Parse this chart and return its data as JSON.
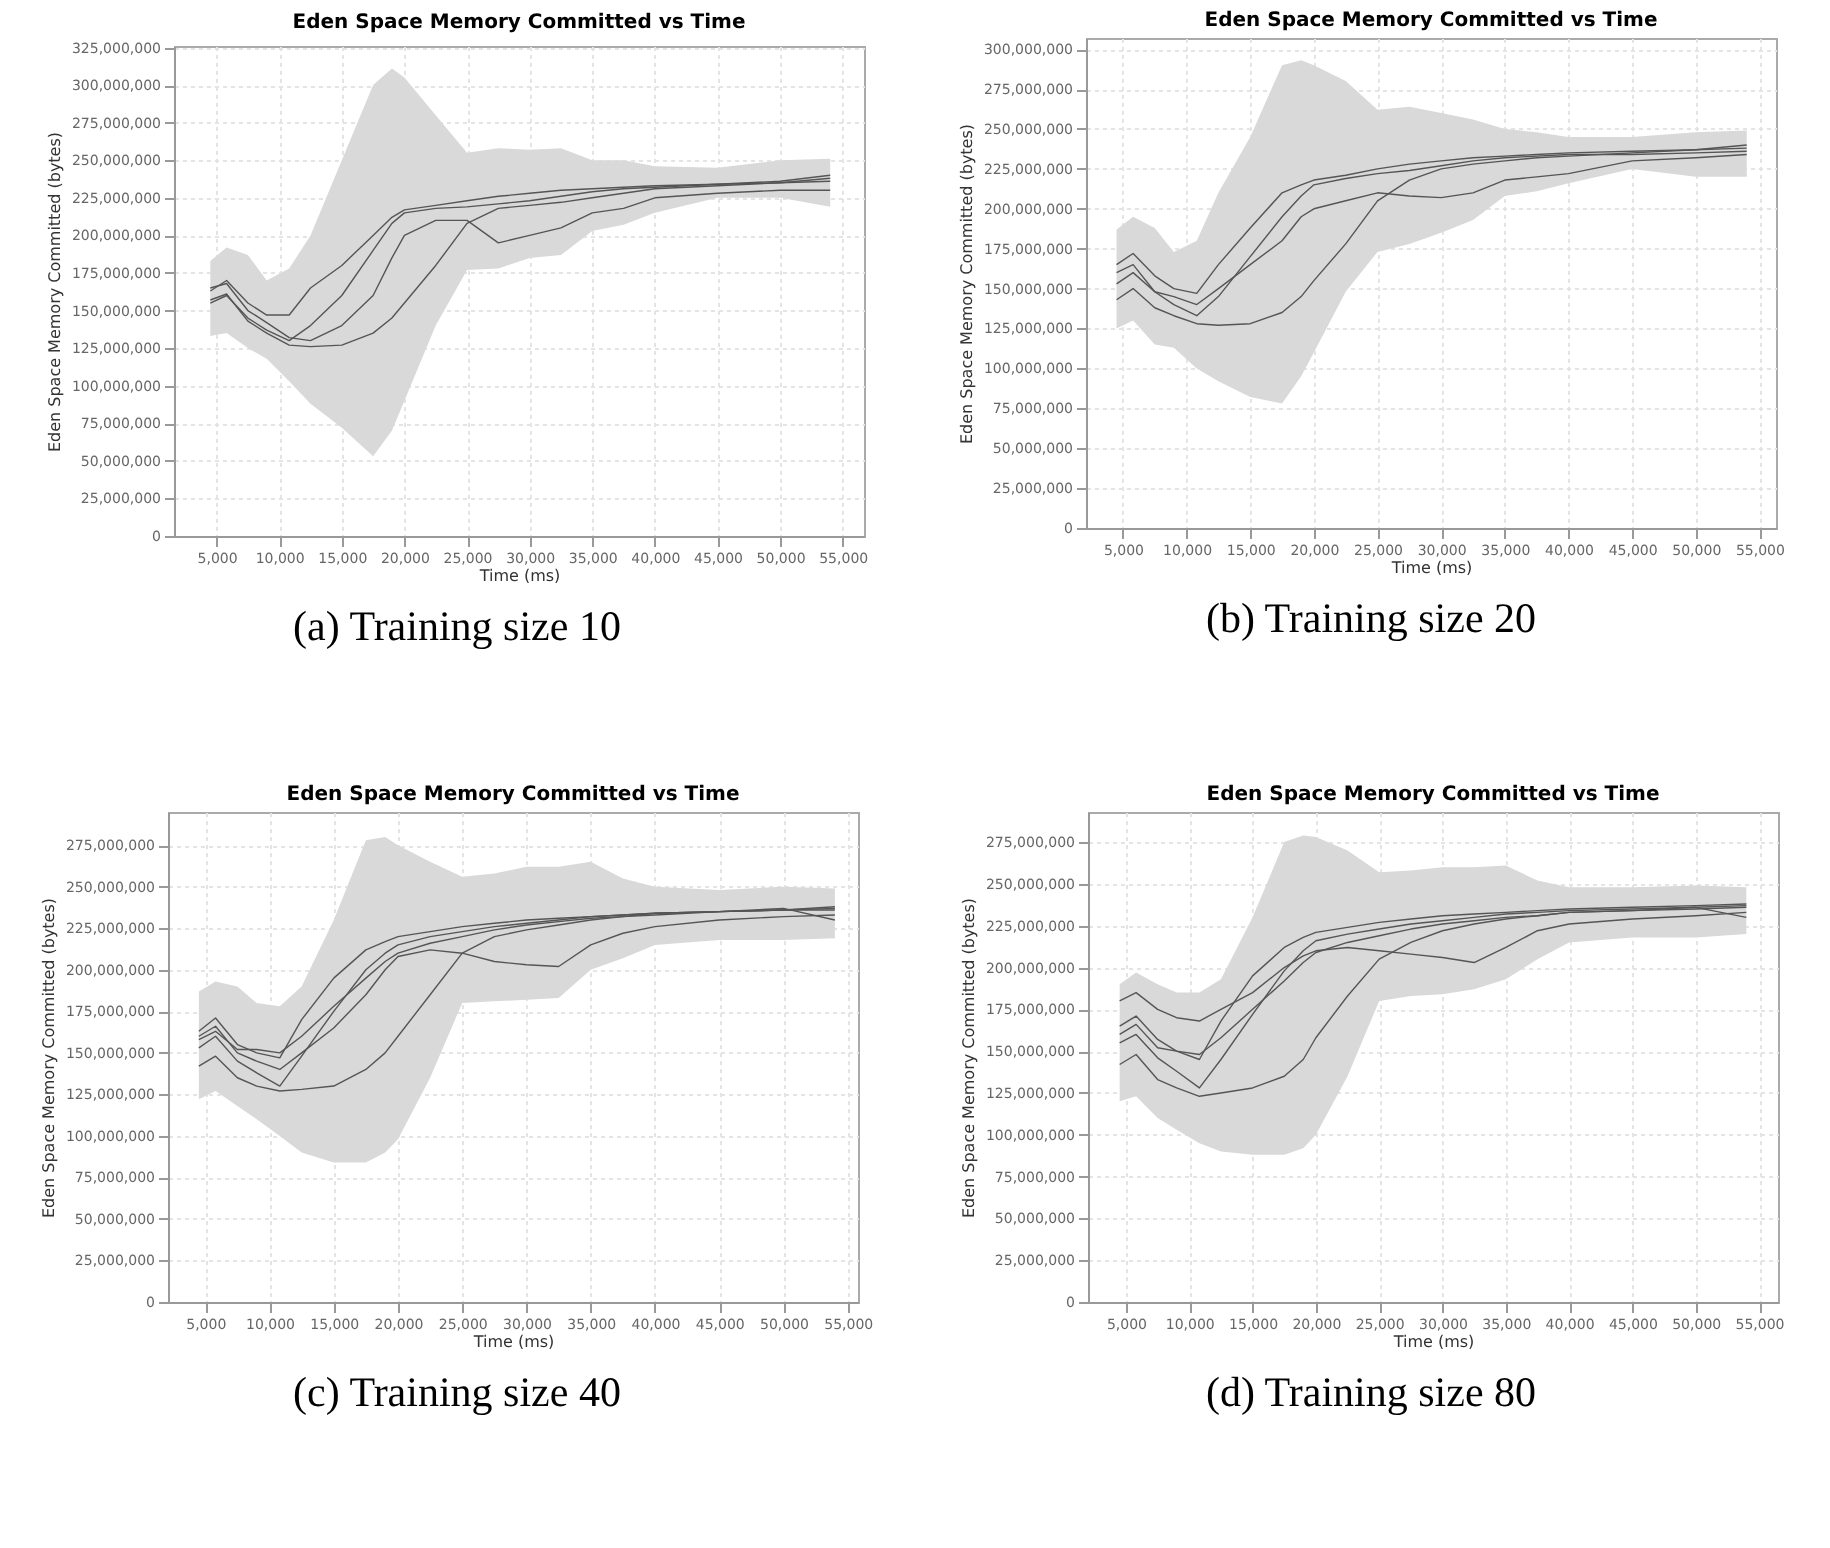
{
  "chart_data": [
    {
      "type": "line",
      "title": "Eden Space Memory Committed vs Time",
      "xlabel": "Time (ms)",
      "ylabel": "Eden Space Memory Committed (bytes)",
      "annotations": [
        "(a)  Training size 10"
      ],
      "grid": true,
      "xlim": [
        1600,
        56700
      ],
      "ylim": [
        0,
        326000000
      ],
      "xticks": [
        {
          "value": 5000,
          "label": "5,000"
        },
        {
          "value": 10000,
          "label": "10,000"
        },
        {
          "value": 15000,
          "label": "15,000"
        },
        {
          "value": 20000,
          "label": "20,000"
        },
        {
          "value": 25000,
          "label": "25,000"
        },
        {
          "value": 30000,
          "label": "30,000"
        },
        {
          "value": 35000,
          "label": "35,000"
        },
        {
          "value": 40000,
          "label": "40,000"
        },
        {
          "value": 45000,
          "label": "45,000"
        },
        {
          "value": 50000,
          "label": "50,000"
        },
        {
          "value": 55000,
          "label": "55,000"
        }
      ],
      "yticks": [
        {
          "value": 0,
          "label": "0"
        },
        {
          "value": 25000000,
          "label": "25,000,000"
        },
        {
          "value": 50000000,
          "label": "50,000,000"
        },
        {
          "value": 75000000,
          "label": "75,000,000"
        },
        {
          "value": 100000000,
          "label": "100,000,000"
        },
        {
          "value": 125000000,
          "label": "125,000,000"
        },
        {
          "value": 150000000,
          "label": "150,000,000"
        },
        {
          "value": 175000000,
          "label": "175,000,000"
        },
        {
          "value": 200000000,
          "label": "200,000,000"
        },
        {
          "value": 225000000,
          "label": "225,000,000"
        },
        {
          "value": 250000000,
          "label": "250,000,000"
        },
        {
          "value": 275000000,
          "label": "275,000,000"
        },
        {
          "value": 300000000,
          "label": "300,000,000"
        },
        {
          "value": 325000000,
          "label": "325,000,000"
        }
      ],
      "x": [
        4500,
        5800,
        7500,
        9000,
        10800,
        12500,
        15000,
        17500,
        19000,
        20000,
        22500,
        25000,
        27500,
        30000,
        32500,
        35000,
        37500,
        40000,
        45000,
        50000,
        54000
      ],
      "series": [
        {
          "color": "#555555",
          "values": [
            163000000,
            170000000,
            155000000,
            147000000,
            147000000,
            165000000,
            180000000,
            200000000,
            212000000,
            217000000,
            220000000,
            223000000,
            226000000,
            228000000,
            230000000,
            231000000,
            232000000,
            233000000,
            234000000,
            235000000,
            236000000
          ],
          "lower": [
            133000000,
            135000000,
            125000000,
            118000000,
            103000000,
            88000000,
            72000000,
            53000000,
            70000000,
            90000000,
            140000000,
            177000000,
            178000000,
            185000000,
            187000000,
            203000000,
            207000000,
            215000000,
            225000000,
            225000000,
            219000000
          ],
          "upper": [
            183000000,
            192000000,
            187000000,
            170000000,
            178000000,
            200000000,
            250000000,
            300000000,
            311000000,
            305000000,
            280000000,
            255000000,
            258000000,
            257000000,
            258000000,
            250000000,
            250000000,
            246000000,
            245000000,
            250000000,
            251000000
          ]
        },
        {
          "color": "#555555",
          "values": [
            155000000,
            160000000,
            145000000,
            137000000,
            130000000,
            140000000,
            160000000,
            190000000,
            208000000,
            215000000,
            218000000,
            219000000,
            221000000,
            223000000,
            226000000,
            229000000,
            231000000,
            232000000,
            234000000,
            236000000,
            240000000
          ]
        },
        {
          "color": "#555555",
          "values": [
            157000000,
            161000000,
            143000000,
            135000000,
            127000000,
            126000000,
            127000000,
            135000000,
            145000000,
            155000000,
            180000000,
            208000000,
            218000000,
            220000000,
            222000000,
            225000000,
            228000000,
            231000000,
            233000000,
            235000000,
            238000000
          ]
        },
        {
          "color": "#555555",
          "values": [
            165000000,
            168000000,
            150000000,
            142000000,
            132000000,
            130000000,
            140000000,
            160000000,
            185000000,
            200000000,
            210000000,
            210000000,
            195000000,
            200000000,
            205000000,
            215000000,
            218000000,
            225000000,
            228000000,
            230000000,
            230000000
          ]
        }
      ]
    },
    {
      "type": "line",
      "title": "Eden Space Memory Committed vs Time",
      "xlabel": "Time (ms)",
      "ylabel": "Eden Space Memory Committed (bytes)",
      "annotations": [
        "(b)  Training size 20"
      ],
      "grid": true,
      "xlim": [
        2100,
        56300
      ],
      "ylim": [
        0,
        307000000
      ],
      "xticks": [
        {
          "value": 5000,
          "label": "5,000"
        },
        {
          "value": 10000,
          "label": "10,000"
        },
        {
          "value": 15000,
          "label": "15,000"
        },
        {
          "value": 20000,
          "label": "20,000"
        },
        {
          "value": 25000,
          "label": "25,000"
        },
        {
          "value": 30000,
          "label": "30,000"
        },
        {
          "value": 35000,
          "label": "35,000"
        },
        {
          "value": 40000,
          "label": "40,000"
        },
        {
          "value": 45000,
          "label": "45,000"
        },
        {
          "value": 50000,
          "label": "50,000"
        },
        {
          "value": 55000,
          "label": "55,000"
        }
      ],
      "yticks": [
        {
          "value": 0,
          "label": "0"
        },
        {
          "value": 25000000,
          "label": "25,000,000"
        },
        {
          "value": 50000000,
          "label": "50,000,000"
        },
        {
          "value": 75000000,
          "label": "75,000,000"
        },
        {
          "value": 100000000,
          "label": "100,000,000"
        },
        {
          "value": 125000000,
          "label": "125,000,000"
        },
        {
          "value": 150000000,
          "label": "150,000,000"
        },
        {
          "value": 175000000,
          "label": "175,000,000"
        },
        {
          "value": 200000000,
          "label": "200,000,000"
        },
        {
          "value": 225000000,
          "label": "225,000,000"
        },
        {
          "value": 250000000,
          "label": "250,000,000"
        },
        {
          "value": 275000000,
          "label": "275,000,000"
        },
        {
          "value": 300000000,
          "label": "300,000,000"
        }
      ],
      "x": [
        4500,
        5800,
        7500,
        9000,
        10800,
        12500,
        15000,
        17500,
        19000,
        20000,
        22500,
        25000,
        27500,
        30000,
        32500,
        35000,
        37500,
        40000,
        45000,
        50000,
        54000
      ],
      "series": [
        {
          "color": "#555555",
          "values": [
            165000000,
            172000000,
            158000000,
            150000000,
            147000000,
            165000000,
            188000000,
            210000000,
            215000000,
            218000000,
            221000000,
            225000000,
            228000000,
            230000000,
            232000000,
            233000000,
            234000000,
            235000000,
            236000000,
            237000000,
            238000000
          ],
          "lower": [
            125000000,
            130000000,
            115000000,
            113000000,
            100000000,
            92000000,
            82000000,
            78000000,
            95000000,
            110000000,
            148000000,
            173000000,
            178000000,
            185000000,
            193000000,
            208000000,
            211000000,
            216000000,
            225000000,
            220000000,
            220000000
          ],
          "upper": [
            187000000,
            195000000,
            188000000,
            173000000,
            180000000,
            210000000,
            245000000,
            290000000,
            293000000,
            290000000,
            280000000,
            262000000,
            264000000,
            260000000,
            256000000,
            250000000,
            248000000,
            245000000,
            245000000,
            248000000,
            249000000
          ]
        },
        {
          "color": "#555555",
          "values": [
            160000000,
            165000000,
            148000000,
            140000000,
            133000000,
            145000000,
            170000000,
            195000000,
            208000000,
            215000000,
            219000000,
            222000000,
            224000000,
            227000000,
            230000000,
            232000000,
            233000000,
            234000000,
            234000000,
            235000000,
            236000000
          ]
        },
        {
          "color": "#555555",
          "values": [
            143000000,
            150000000,
            138000000,
            133000000,
            128000000,
            127000000,
            128000000,
            135000000,
            145000000,
            155000000,
            178000000,
            205000000,
            218000000,
            225000000,
            228000000,
            230000000,
            232000000,
            233000000,
            235000000,
            237000000,
            240000000
          ]
        },
        {
          "color": "#555555",
          "values": [
            153000000,
            160000000,
            148000000,
            145000000,
            140000000,
            150000000,
            165000000,
            180000000,
            195000000,
            200000000,
            205000000,
            210000000,
            208000000,
            207000000,
            210000000,
            218000000,
            220000000,
            222000000,
            230000000,
            232000000,
            234000000
          ]
        }
      ]
    },
    {
      "type": "line",
      "title": "Eden Space Memory Committed vs Time",
      "xlabel": "Time (ms)",
      "ylabel": "Eden Space Memory Committed (bytes)",
      "annotations": [
        "(c)  Training size 40"
      ],
      "grid": true,
      "xlim": [
        2100,
        55800
      ],
      "ylim": [
        0,
        295000000
      ],
      "xticks": [
        {
          "value": 5000,
          "label": "5,000"
        },
        {
          "value": 10000,
          "label": "10,000"
        },
        {
          "value": 15000,
          "label": "15,000"
        },
        {
          "value": 20000,
          "label": "20,000"
        },
        {
          "value": 25000,
          "label": "25,000"
        },
        {
          "value": 30000,
          "label": "30,000"
        },
        {
          "value": 35000,
          "label": "35,000"
        },
        {
          "value": 40000,
          "label": "40,000"
        },
        {
          "value": 45000,
          "label": "45,000"
        },
        {
          "value": 50000,
          "label": "50,000"
        },
        {
          "value": 55000,
          "label": "55,000"
        }
      ],
      "yticks": [
        {
          "value": 0,
          "label": "0"
        },
        {
          "value": 25000000,
          "label": "25,000,000"
        },
        {
          "value": 50000000,
          "label": "50,000,000"
        },
        {
          "value": 75000000,
          "label": "75,000,000"
        },
        {
          "value": 100000000,
          "label": "100,000,000"
        },
        {
          "value": 125000000,
          "label": "125,000,000"
        },
        {
          "value": 150000000,
          "label": "150,000,000"
        },
        {
          "value": 175000000,
          "label": "175,000,000"
        },
        {
          "value": 200000000,
          "label": "200,000,000"
        },
        {
          "value": 225000000,
          "label": "225,000,000"
        },
        {
          "value": 250000000,
          "label": "250,000,000"
        },
        {
          "value": 275000000,
          "label": "275,000,000"
        }
      ],
      "x": [
        4500,
        5800,
        7500,
        9000,
        10800,
        12500,
        15000,
        17500,
        19000,
        20000,
        22500,
        25000,
        27500,
        30000,
        32500,
        35000,
        37500,
        40000,
        45000,
        50000,
        54000
      ],
      "series": [
        {
          "color": "#555555",
          "values": [
            163000000,
            171000000,
            155000000,
            150000000,
            147000000,
            170000000,
            195000000,
            212000000,
            217000000,
            220000000,
            223000000,
            226000000,
            228000000,
            230000000,
            231000000,
            232000000,
            233000000,
            234000000,
            235000000,
            236000000,
            238000000
          ],
          "lower": [
            122000000,
            127000000,
            118000000,
            110000000,
            100000000,
            90000000,
            84000000,
            84000000,
            90000000,
            98000000,
            135000000,
            180000000,
            181000000,
            182000000,
            183000000,
            200000000,
            207000000,
            215000000,
            218000000,
            218000000,
            219000000
          ],
          "upper": [
            187000000,
            193000000,
            190000000,
            180000000,
            178000000,
            190000000,
            230000000,
            278000000,
            280000000,
            275000000,
            265000000,
            256000000,
            258000000,
            262000000,
            262000000,
            265000000,
            255000000,
            250000000,
            248000000,
            250000000,
            249000000
          ]
        },
        {
          "color": "#555555",
          "values": [
            153000000,
            160000000,
            145000000,
            138000000,
            130000000,
            148000000,
            175000000,
            200000000,
            210000000,
            215000000,
            220000000,
            223000000,
            226000000,
            228000000,
            230000000,
            232000000,
            233000000,
            234000000,
            235000000,
            236000000,
            237000000
          ]
        },
        {
          "color": "#555555",
          "values": [
            142000000,
            148000000,
            135000000,
            130000000,
            127000000,
            128000000,
            130000000,
            140000000,
            150000000,
            160000000,
            185000000,
            210000000,
            220000000,
            224000000,
            227000000,
            230000000,
            232000000,
            233000000,
            235000000,
            236000000,
            236000000
          ]
        },
        {
          "color": "#555555",
          "values": [
            160000000,
            166000000,
            150000000,
            145000000,
            140000000,
            150000000,
            165000000,
            185000000,
            200000000,
            208000000,
            212000000,
            210000000,
            205000000,
            203000000,
            202000000,
            215000000,
            222000000,
            226000000,
            230000000,
            232000000,
            233000000
          ]
        },
        {
          "color": "#555555",
          "values": [
            158000000,
            163000000,
            152000000,
            152000000,
            150000000,
            160000000,
            178000000,
            195000000,
            205000000,
            210000000,
            216000000,
            220000000,
            224000000,
            227000000,
            229000000,
            231000000,
            232000000,
            234000000,
            235000000,
            237000000,
            230000000
          ]
        }
      ]
    },
    {
      "type": "line",
      "title": "Eden Space Memory Committed vs Time",
      "xlabel": "Time (ms)",
      "ylabel": "Eden Space Memory Committed (bytes)",
      "annotations": [
        "(d)  Training size 80"
      ],
      "grid": true,
      "xlim": [
        2000,
        56500
      ],
      "ylim": [
        0,
        293000000
      ],
      "xticks": [
        {
          "value": 5000,
          "label": "5,000"
        },
        {
          "value": 10000,
          "label": "10,000"
        },
        {
          "value": 15000,
          "label": "15,000"
        },
        {
          "value": 20000,
          "label": "20,000"
        },
        {
          "value": 25000,
          "label": "25,000"
        },
        {
          "value": 30000,
          "label": "30,000"
        },
        {
          "value": 35000,
          "label": "35,000"
        },
        {
          "value": 40000,
          "label": "40,000"
        },
        {
          "value": 45000,
          "label": "45,000"
        },
        {
          "value": 50000,
          "label": "50,000"
        },
        {
          "value": 55000,
          "label": "55,000"
        }
      ],
      "yticks": [
        {
          "value": 0,
          "label": "0"
        },
        {
          "value": 25000000,
          "label": "25,000,000"
        },
        {
          "value": 50000000,
          "label": "50,000,000"
        },
        {
          "value": 75000000,
          "label": "75,000,000"
        },
        {
          "value": 100000000,
          "label": "100,000,000"
        },
        {
          "value": 125000000,
          "label": "125,000,000"
        },
        {
          "value": 150000000,
          "label": "150,000,000"
        },
        {
          "value": 175000000,
          "label": "175,000,000"
        },
        {
          "value": 200000000,
          "label": "200,000,000"
        },
        {
          "value": 225000000,
          "label": "225,000,000"
        },
        {
          "value": 250000000,
          "label": "250,000,000"
        },
        {
          "value": 275000000,
          "label": "275,000,000"
        }
      ],
      "x": [
        4500,
        5800,
        7500,
        9000,
        10800,
        12500,
        15000,
        17500,
        19000,
        20000,
        22500,
        25000,
        27500,
        30000,
        32500,
        35000,
        37500,
        40000,
        45000,
        50000,
        54000
      ],
      "series": [
        {
          "color": "#555555",
          "values": [
            165000000,
            171000000,
            157000000,
            150000000,
            145000000,
            168000000,
            195000000,
            212000000,
            218000000,
            221000000,
            224000000,
            227000000,
            229000000,
            231000000,
            232000000,
            233000000,
            234000000,
            235000000,
            236000000,
            237000000,
            238000000
          ],
          "lower": [
            120000000,
            123000000,
            110000000,
            103000000,
            95000000,
            90000000,
            88000000,
            88000000,
            92000000,
            100000000,
            135000000,
            180000000,
            183000000,
            184000000,
            187000000,
            193000000,
            205000000,
            215000000,
            218000000,
            218000000,
            220000000
          ],
          "upper": [
            190000000,
            197000000,
            190000000,
            185000000,
            185000000,
            193000000,
            230000000,
            275000000,
            279000000,
            278000000,
            270000000,
            257000000,
            258000000,
            260000000,
            260000000,
            261000000,
            252000000,
            248000000,
            248000000,
            249000000,
            248000000
          ]
        },
        {
          "color": "#555555",
          "values": [
            155000000,
            160000000,
            146000000,
            138000000,
            128000000,
            145000000,
            172000000,
            198000000,
            210000000,
            216000000,
            220000000,
            223000000,
            226000000,
            228000000,
            230000000,
            232000000,
            233000000,
            234000000,
            235000000,
            236000000,
            237000000
          ]
        },
        {
          "color": "#555555",
          "values": [
            142000000,
            148000000,
            133000000,
            128000000,
            123000000,
            125000000,
            128000000,
            135000000,
            145000000,
            158000000,
            183000000,
            205000000,
            215000000,
            222000000,
            226000000,
            229000000,
            231000000,
            233000000,
            234000000,
            235000000,
            236000000
          ]
        },
        {
          "color": "#555555",
          "values": [
            180000000,
            185000000,
            175000000,
            170000000,
            168000000,
            175000000,
            185000000,
            200000000,
            207000000,
            210000000,
            212000000,
            210000000,
            208000000,
            206000000,
            203000000,
            212000000,
            222000000,
            226000000,
            229000000,
            231000000,
            233000000
          ]
        },
        {
          "color": "#555555",
          "values": [
            160000000,
            166000000,
            152000000,
            150000000,
            148000000,
            158000000,
            175000000,
            192000000,
            203000000,
            209000000,
            215000000,
            219000000,
            223000000,
            226000000,
            228000000,
            230000000,
            231000000,
            233000000,
            234000000,
            236000000,
            230000000
          ]
        }
      ]
    }
  ]
}
